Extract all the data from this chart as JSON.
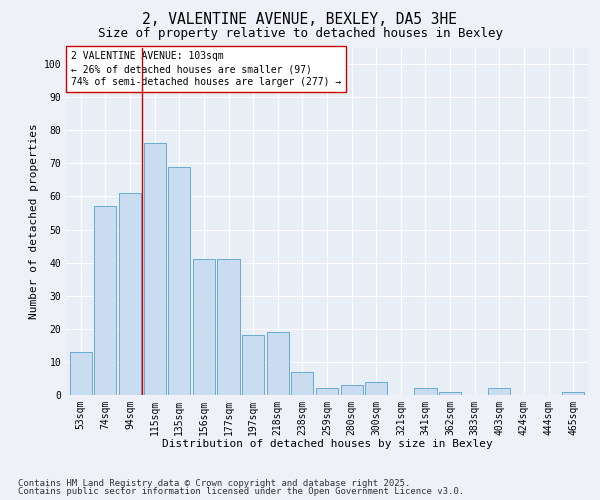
{
  "title": "2, VALENTINE AVENUE, BEXLEY, DA5 3HE",
  "subtitle": "Size of property relative to detached houses in Bexley",
  "xlabel": "Distribution of detached houses by size in Bexley",
  "ylabel": "Number of detached properties",
  "categories": [
    "53sqm",
    "74sqm",
    "94sqm",
    "115sqm",
    "135sqm",
    "156sqm",
    "177sqm",
    "197sqm",
    "218sqm",
    "238sqm",
    "259sqm",
    "280sqm",
    "300sqm",
    "321sqm",
    "341sqm",
    "362sqm",
    "383sqm",
    "403sqm",
    "424sqm",
    "444sqm",
    "465sqm"
  ],
  "values": [
    13,
    57,
    61,
    76,
    69,
    41,
    41,
    18,
    19,
    7,
    2,
    3,
    4,
    0,
    2,
    1,
    0,
    2,
    0,
    0,
    1
  ],
  "bar_color": "#c9dcf0",
  "bar_edge_color": "#6aaad4",
  "vline_x": 2.5,
  "vline_color": "#cc0000",
  "annotation_text": "2 VALENTINE AVENUE: 103sqm\n← 26% of detached houses are smaller (97)\n74% of semi-detached houses are larger (277) →",
  "annotation_box_color": "#ffffff",
  "annotation_box_edge": "#cc0000",
  "ylim": [
    0,
    105
  ],
  "yticks": [
    0,
    10,
    20,
    30,
    40,
    50,
    60,
    70,
    80,
    90,
    100
  ],
  "footer_line1": "Contains HM Land Registry data © Crown copyright and database right 2025.",
  "footer_line2": "Contains public sector information licensed under the Open Government Licence v3.0.",
  "bg_color": "#eef2f8",
  "plot_bg_color": "#e8eef6",
  "title_fontsize": 10.5,
  "subtitle_fontsize": 9,
  "axis_label_fontsize": 8,
  "tick_fontsize": 7,
  "annotation_fontsize": 7,
  "footer_fontsize": 6.5
}
